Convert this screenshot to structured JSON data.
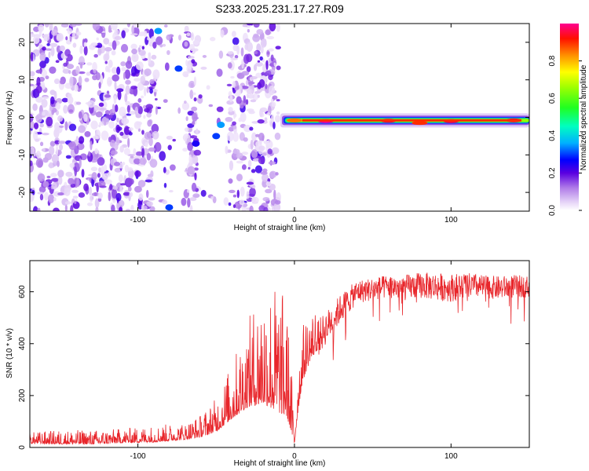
{
  "title": "S233.2025.231.17.27.R09",
  "colors": {
    "spectral_palette": [
      "#ffffff",
      "#e6d4f7",
      "#c9a0f0",
      "#a066e8",
      "#8040e0",
      "#6a10d8",
      "#0000ff",
      "#00c0ff",
      "#00ff80",
      "#40ff00",
      "#ffff00",
      "#ff8000",
      "#ff0000",
      "#ff0080"
    ],
    "snr_line": "#e8262b"
  },
  "chart_data": [
    {
      "type": "heatmap",
      "xlabel": "Height of straight line (km)",
      "ylabel": "Frequency (Hz)",
      "xlim": [
        -169,
        150
      ],
      "ylim": [
        -25,
        25
      ],
      "x_ticks": [
        -100,
        0,
        100
      ],
      "x_tick_labels": [
        "-100",
        "0",
        "100"
      ],
      "y_ticks": [
        -20,
        -10,
        0,
        10,
        20
      ],
      "y_tick_labels": [
        "-20",
        "-10",
        "0",
        "10",
        "20"
      ],
      "colorbar": {
        "label": "Normalized spectral amplitude",
        "range": [
          0,
          1
        ],
        "ticks": [
          0,
          0.2,
          0.4,
          0.6,
          0.8
        ],
        "tick_labels": [
          "0.0",
          "0.2",
          "0.4",
          "0.6",
          "0.8"
        ]
      },
      "noise_region_km": [
        -169,
        -10
      ],
      "noise_blank_bands_km": [
        [
          -88,
          -70
        ],
        [
          -62,
          -42
        ]
      ],
      "signal_band": {
        "x_start_km": -9,
        "x_end_km": 150,
        "freq_hz": -0.8,
        "hotspots": [
          {
            "x_km": 0,
            "freq_hz": -0.8,
            "amp": 0.85
          },
          {
            "x_km": 20,
            "freq_hz": -1.0,
            "amp": 1.0
          },
          {
            "x_km": 60,
            "freq_hz": -0.9,
            "amp": 0.95
          },
          {
            "x_km": 80,
            "freq_hz": -1.5,
            "amp": 0.9
          },
          {
            "x_km": 100,
            "freq_hz": -1.0,
            "amp": 0.95
          },
          {
            "x_km": 140,
            "freq_hz": -0.8,
            "amp": 0.95
          }
        ]
      },
      "bright_spots": [
        {
          "x_km": -87,
          "freq_hz": 23,
          "amp": 0.35
        },
        {
          "x_km": -74,
          "freq_hz": 13,
          "amp": 0.3
        },
        {
          "x_km": -50,
          "freq_hz": -5,
          "amp": 0.3
        },
        {
          "x_km": -47,
          "freq_hz": -2,
          "amp": 0.35
        },
        {
          "x_km": -80,
          "freq_hz": -24,
          "amp": 0.3
        },
        {
          "x_km": -63,
          "freq_hz": -7,
          "amp": 0.25
        }
      ]
    },
    {
      "type": "line",
      "xlabel": "Height of straight line (km)",
      "ylabel": "SNR (10 * v/v)",
      "xlim": [
        -169,
        150
      ],
      "ylim": [
        0,
        720
      ],
      "x_ticks": [
        -100,
        0,
        100
      ],
      "x_tick_labels": [
        "-100",
        "0",
        "100"
      ],
      "y_ticks": [
        0,
        200,
        400,
        600
      ],
      "y_tick_labels": [
        "0",
        "200",
        "400",
        "600"
      ],
      "series": [
        {
          "x": [
            -169,
            -150,
            -130,
            -110,
            -90,
            -70,
            -60,
            -50,
            -40,
            -30,
            -20,
            -10,
            -5,
            -2,
            0,
            2,
            5,
            10,
            20,
            30,
            40,
            50,
            60,
            70,
            80,
            90,
            100,
            110,
            120,
            130,
            140,
            150
          ],
          "values": [
            25,
            25,
            25,
            30,
            35,
            45,
            60,
            90,
            160,
            230,
            280,
            250,
            220,
            120,
            20,
            170,
            300,
            380,
            460,
            540,
            600,
            610,
            620,
            615,
            625,
            620,
            615,
            625,
            620,
            615,
            620,
            620
          ],
          "noise_amplitude": [
            20,
            25,
            25,
            25,
            30,
            30,
            40,
            60,
            100,
            150,
            220,
            230,
            200,
            120,
            20,
            90,
            100,
            90,
            70,
            60,
            50,
            50,
            50,
            55,
            55,
            60,
            60,
            55,
            50,
            50,
            50,
            45
          ]
        }
      ]
    }
  ]
}
